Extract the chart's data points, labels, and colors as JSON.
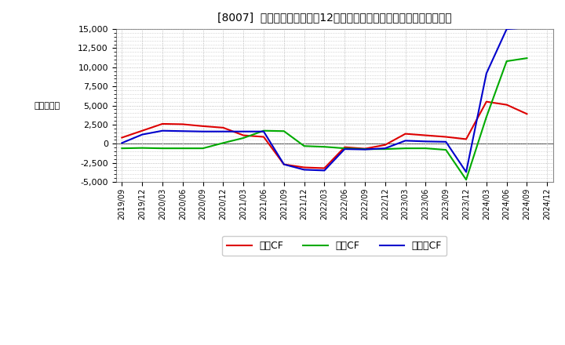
{
  "title": "[8007]  キャッシュフローの12か月移動合計の対前年同期増減額の推移",
  "ylabel": "（百万円）",
  "background_color": "#ffffff",
  "plot_bg_color": "#ffffff",
  "grid_color": "#aaaaaa",
  "ylim": [
    -5000,
    15000
  ],
  "yticks": [
    -5000,
    -2500,
    0,
    2500,
    5000,
    7500,
    10000,
    12500,
    15000
  ],
  "x_labels": [
    "2019/09",
    "2019/12",
    "2020/03",
    "2020/06",
    "2020/09",
    "2020/12",
    "2021/03",
    "2021/06",
    "2021/09",
    "2021/12",
    "2022/03",
    "2022/06",
    "2022/09",
    "2022/12",
    "2023/03",
    "2023/06",
    "2023/09",
    "2023/12",
    "2024/03",
    "2024/06",
    "2024/09",
    "2024/12"
  ],
  "eigyo_cf": [
    800,
    1700,
    2600,
    2550,
    2300,
    2100,
    1100,
    900,
    -2700,
    -3100,
    -3200,
    -450,
    -650,
    -150,
    1300,
    1100,
    900,
    600,
    5500,
    5100,
    3900,
    null
  ],
  "toshi_cf": [
    -600,
    -550,
    -600,
    -600,
    -600,
    100,
    750,
    1700,
    1650,
    -300,
    -400,
    -600,
    -700,
    -700,
    -600,
    -600,
    -800,
    -4700,
    3500,
    10800,
    11200,
    null
  ],
  "free_cf": [
    100,
    1200,
    1700,
    1650,
    1600,
    1600,
    1600,
    1600,
    -2700,
    -3400,
    -3500,
    -700,
    -750,
    -600,
    400,
    300,
    250,
    -3700,
    9200,
    15000,
    15200,
    null
  ],
  "eigyo_color": "#dd0000",
  "toshi_color": "#00aa00",
  "free_color": "#0000cc",
  "line_width": 1.5,
  "legend_labels": [
    "営業CF",
    "投資CF",
    "フリーCF"
  ]
}
